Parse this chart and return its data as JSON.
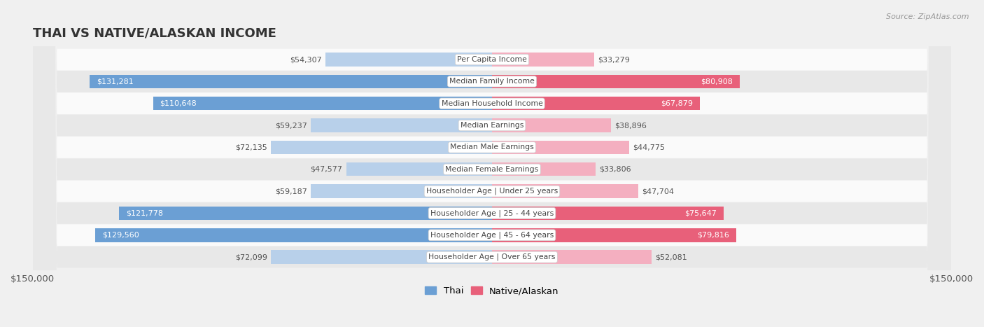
{
  "title": "THAI VS NATIVE/ALASKAN INCOME",
  "source": "Source: ZipAtlas.com",
  "categories": [
    "Per Capita Income",
    "Median Family Income",
    "Median Household Income",
    "Median Earnings",
    "Median Male Earnings",
    "Median Female Earnings",
    "Householder Age | Under 25 years",
    "Householder Age | 25 - 44 years",
    "Householder Age | 45 - 64 years",
    "Householder Age | Over 65 years"
  ],
  "thai_values": [
    54307,
    131281,
    110648,
    59237,
    72135,
    47577,
    59187,
    121778,
    129560,
    72099
  ],
  "native_values": [
    33279,
    80908,
    67879,
    38896,
    44775,
    33806,
    47704,
    75647,
    79816,
    52081
  ],
  "thai_labels": [
    "$54,307",
    "$131,281",
    "$110,648",
    "$59,237",
    "$72,135",
    "$47,577",
    "$59,187",
    "$121,778",
    "$129,560",
    "$72,099"
  ],
  "native_labels": [
    "$33,279",
    "$80,908",
    "$67,879",
    "$38,896",
    "$44,775",
    "$33,806",
    "$47,704",
    "$75,647",
    "$79,816",
    "$52,081"
  ],
  "max_value": 150000,
  "thai_color_dark": "#6b9fd4",
  "thai_color_light": "#b8d0ea",
  "native_color_dark": "#e8607a",
  "native_color_light": "#f4afc0",
  "bg_color": "#f0f0f0",
  "row_bg_odd": "#fafafa",
  "row_bg_even": "#e8e8e8",
  "label_color_white": "#ffffff",
  "label_color_dark": "#555555",
  "axis_label_left": "$150,000",
  "axis_label_right": "$150,000",
  "legend_thai": "Thai",
  "legend_native": "Native/Alaskan",
  "thai_dark_threshold": 90000,
  "native_dark_threshold": 60000
}
